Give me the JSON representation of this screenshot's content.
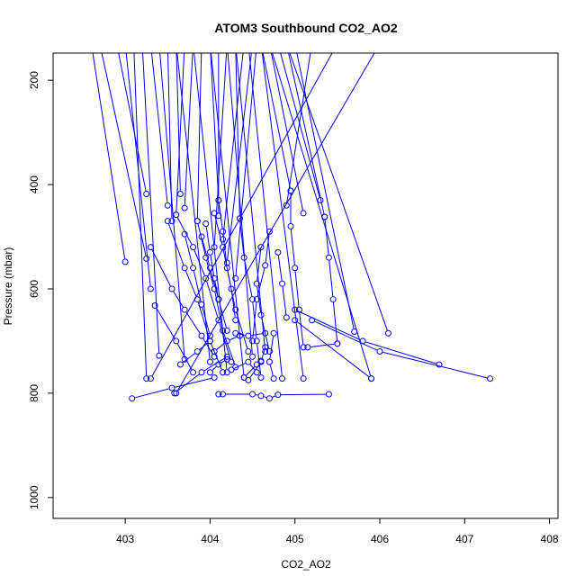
{
  "chart_data": {
    "type": "line",
    "title": "ATOM3 Southbound CO2_AO2",
    "xlabel": "CO2_AO2",
    "ylabel": "Pressure (mbar)",
    "xlim": [
      402.15,
      408.1
    ],
    "ylim": [
      1040,
      148
    ],
    "y_reversed": true,
    "x_ticks": [
      403,
      404,
      405,
      406,
      407,
      408
    ],
    "x_tick_labels": [
      "403",
      "404",
      "405",
      "406",
      "407",
      "408"
    ],
    "y_ticks": [
      200,
      400,
      600,
      800,
      1000
    ],
    "y_tick_labels": [
      "200",
      "400",
      "600",
      "800",
      "1000"
    ],
    "grid": false,
    "legend": "none",
    "series_color": "#0000ff",
    "marker": "open-circle",
    "series": [
      {
        "values": [
          [
            402.6,
            130
          ],
          [
            403.0,
            548
          ]
        ]
      },
      {
        "values": [
          [
            402.9,
            130
          ],
          [
            403.25,
            418
          ]
        ]
      },
      {
        "values": [
          [
            402.7,
            130
          ],
          [
            403.25,
            542
          ]
        ]
      },
      {
        "values": [
          [
            403.0,
            130
          ],
          [
            403.3,
            600
          ]
        ]
      },
      {
        "values": [
          [
            403.3,
            130
          ],
          [
            403.5,
            440
          ]
        ]
      },
      {
        "values": [
          [
            403.5,
            130
          ],
          [
            403.55,
            470
          ]
        ]
      },
      {
        "values": [
          [
            403.6,
            130
          ],
          [
            403.65,
            418
          ]
        ]
      },
      {
        "values": [
          [
            403.7,
            130
          ],
          [
            403.6,
            458
          ]
        ]
      },
      {
        "values": [
          [
            403.8,
            130
          ],
          [
            403.7,
            445
          ]
        ]
      },
      {
        "values": [
          [
            403.9,
            130
          ],
          [
            403.85,
            470
          ]
        ]
      },
      {
        "values": [
          [
            404.0,
            130
          ],
          [
            404.1,
            430
          ]
        ]
      },
      {
        "values": [
          [
            404.1,
            130
          ],
          [
            404.1,
            460
          ]
        ]
      },
      {
        "values": [
          [
            404.2,
            130
          ],
          [
            404.05,
            520
          ]
        ]
      },
      {
        "values": [
          [
            404.3,
            130
          ],
          [
            404.35,
            465
          ]
        ]
      },
      {
        "values": [
          [
            404.4,
            130
          ],
          [
            404.15,
            505
          ]
        ]
      },
      {
        "values": [
          [
            404.5,
            130
          ],
          [
            404.2,
            550
          ]
        ]
      },
      {
        "values": [
          [
            404.55,
            130
          ],
          [
            404.3,
            580
          ]
        ]
      },
      {
        "values": [
          [
            404.6,
            130
          ],
          [
            404.95,
            412
          ]
        ]
      },
      {
        "values": [
          [
            404.7,
            130
          ],
          [
            405.1,
            455
          ]
        ]
      },
      {
        "values": [
          [
            404.8,
            130
          ],
          [
            405.3,
            430
          ]
        ]
      },
      {
        "values": [
          [
            404.9,
            130
          ],
          [
            405.35,
            462
          ]
        ]
      },
      {
        "values": [
          [
            405.0,
            130
          ],
          [
            405.7,
            682
          ]
        ]
      },
      {
        "values": [
          [
            405.2,
            130
          ],
          [
            404.9,
            440
          ]
        ]
      },
      {
        "values": [
          [
            403.2,
            130
          ],
          [
            403.4,
            728
          ]
        ]
      },
      {
        "values": [
          [
            403.4,
            130
          ],
          [
            403.7,
            735
          ]
        ]
      },
      {
        "values": [
          [
            403.1,
            130
          ],
          [
            403.25,
            772
          ]
        ]
      },
      {
        "values": [
          [
            403.6,
            130
          ],
          [
            404.0,
            740
          ]
        ]
      },
      {
        "values": [
          [
            403.8,
            130
          ],
          [
            404.2,
            760
          ]
        ]
      },
      {
        "values": [
          [
            404.0,
            130
          ],
          [
            404.4,
            770
          ]
        ]
      },
      {
        "values": [
          [
            404.2,
            130
          ],
          [
            404.5,
            730
          ]
        ]
      },
      {
        "values": [
          [
            404.3,
            130
          ],
          [
            404.65,
            720
          ]
        ]
      },
      {
        "values": [
          [
            404.45,
            130
          ],
          [
            404.85,
            772
          ]
        ]
      },
      {
        "values": [
          [
            404.6,
            130
          ],
          [
            405.1,
            772
          ]
        ]
      },
      {
        "values": [
          [
            404.7,
            130
          ],
          [
            405.9,
            772
          ]
        ]
      },
      {
        "values": [
          [
            404.9,
            130
          ],
          [
            406.1,
            685
          ]
        ]
      },
      {
        "values": [
          [
            405.5,
            130
          ],
          [
            403.3,
            772
          ]
        ]
      },
      {
        "values": [
          [
            406.0,
            130
          ],
          [
            403.6,
            800
          ]
        ]
      },
      {
        "values": [
          [
            403.3,
            520
          ],
          [
            403.55,
            600
          ],
          [
            403.7,
            640
          ],
          [
            403.9,
            690
          ],
          [
            404.05,
            730
          ]
        ]
      },
      {
        "values": [
          [
            403.5,
            470
          ],
          [
            403.7,
            560
          ],
          [
            403.85,
            620
          ],
          [
            404.0,
            700
          ],
          [
            404.15,
            760
          ]
        ]
      },
      {
        "values": [
          [
            403.6,
            458
          ],
          [
            403.8,
            520
          ],
          [
            403.95,
            580
          ],
          [
            404.1,
            660
          ],
          [
            404.25,
            740
          ]
        ]
      },
      {
        "values": [
          [
            403.85,
            470
          ],
          [
            403.95,
            540
          ],
          [
            404.05,
            600
          ],
          [
            404.15,
            680
          ],
          [
            404.3,
            750
          ]
        ]
      },
      {
        "values": [
          [
            404.1,
            430
          ],
          [
            404.15,
            490
          ],
          [
            404.2,
            560
          ],
          [
            404.3,
            640
          ],
          [
            404.45,
            720
          ]
        ]
      },
      {
        "values": [
          [
            404.35,
            465
          ],
          [
            404.4,
            540
          ],
          [
            404.5,
            620
          ],
          [
            404.55,
            700
          ],
          [
            404.6,
            770
          ]
        ]
      },
      {
        "values": [
          [
            404.6,
            520
          ],
          [
            404.55,
            590
          ],
          [
            404.6,
            650
          ],
          [
            404.7,
            720
          ]
        ]
      },
      {
        "values": [
          [
            404.95,
            412
          ],
          [
            404.95,
            480
          ],
          [
            405.0,
            560
          ],
          [
            405.05,
            640
          ],
          [
            405.1,
            712
          ]
        ]
      },
      {
        "values": [
          [
            405.35,
            462
          ],
          [
            405.4,
            540
          ],
          [
            405.45,
            620
          ],
          [
            405.5,
            705
          ]
        ]
      },
      {
        "values": [
          [
            404.8,
            530
          ],
          [
            404.85,
            590
          ],
          [
            404.9,
            655
          ]
        ]
      },
      {
        "values": [
          [
            403.35,
            632
          ],
          [
            403.6,
            700
          ],
          [
            403.8,
            760
          ]
        ]
      },
      {
        "values": [
          [
            403.08,
            810
          ],
          [
            403.55,
            790
          ],
          [
            404.05,
            770
          ]
        ]
      },
      {
        "values": [
          [
            403.58,
            800
          ],
          [
            403.9,
            760
          ],
          [
            404.2,
            730
          ]
        ]
      },
      {
        "values": [
          [
            404.1,
            802
          ],
          [
            404.15,
            802
          ],
          [
            404.5,
            802
          ],
          [
            404.6,
            805
          ],
          [
            404.7,
            810
          ],
          [
            404.8,
            803
          ],
          [
            405.4,
            802
          ]
        ]
      },
      {
        "values": [
          [
            405.15,
            712
          ],
          [
            405.5,
            705
          ]
        ]
      },
      {
        "values": [
          [
            405.9,
            772
          ],
          [
            405.0,
            660
          ]
        ]
      },
      {
        "values": [
          [
            406.7,
            745
          ],
          [
            405.8,
            700
          ],
          [
            405.0,
            640
          ]
        ]
      },
      {
        "values": [
          [
            407.3,
            772
          ],
          [
            406.0,
            720
          ],
          [
            405.2,
            660
          ]
        ]
      },
      {
        "values": [
          [
            404.3,
            685
          ],
          [
            404.45,
            690
          ],
          [
            404.65,
            685
          ]
        ]
      },
      {
        "values": [
          [
            404.45,
            775
          ],
          [
            404.6,
            740
          ],
          [
            404.65,
            712
          ]
        ]
      },
      {
        "values": [
          [
            404.75,
            685
          ],
          [
            404.7,
            740
          ],
          [
            404.75,
            772
          ]
        ]
      },
      {
        "values": [
          [
            404.25,
            755
          ],
          [
            404.45,
            740
          ],
          [
            404.55,
            760
          ]
        ]
      },
      {
        "values": [
          [
            404.7,
            490
          ],
          [
            404.65,
            555
          ],
          [
            404.55,
            620
          ],
          [
            404.5,
            700
          ]
        ]
      },
      {
        "values": [
          [
            404.05,
            455
          ],
          [
            404.15,
            520
          ],
          [
            404.25,
            600
          ],
          [
            404.3,
            660
          ]
        ]
      },
      {
        "values": [
          [
            403.95,
            475
          ],
          [
            404.0,
            530
          ],
          [
            404.05,
            580
          ],
          [
            404.1,
            620
          ]
        ]
      },
      {
        "values": [
          [
            403.7,
            495
          ],
          [
            403.8,
            560
          ],
          [
            403.9,
            630
          ],
          [
            404.0,
            690
          ]
        ]
      },
      {
        "values": [
          [
            403.9,
            500
          ],
          [
            404.0,
            560
          ],
          [
            404.1,
            620
          ],
          [
            404.2,
            680
          ]
        ]
      },
      {
        "values": [
          [
            404.05,
            720
          ],
          [
            404.2,
            700
          ],
          [
            404.35,
            690
          ]
        ]
      },
      {
        "values": [
          [
            403.65,
            745
          ],
          [
            403.85,
            720
          ],
          [
            404.0,
            700
          ]
        ]
      },
      {
        "values": [
          [
            404.0,
            760
          ],
          [
            404.1,
            745
          ],
          [
            404.2,
            735
          ]
        ]
      },
      {
        "values": [
          [
            404.4,
            770
          ],
          [
            404.55,
            745
          ],
          [
            404.6,
            738
          ]
        ]
      }
    ]
  }
}
